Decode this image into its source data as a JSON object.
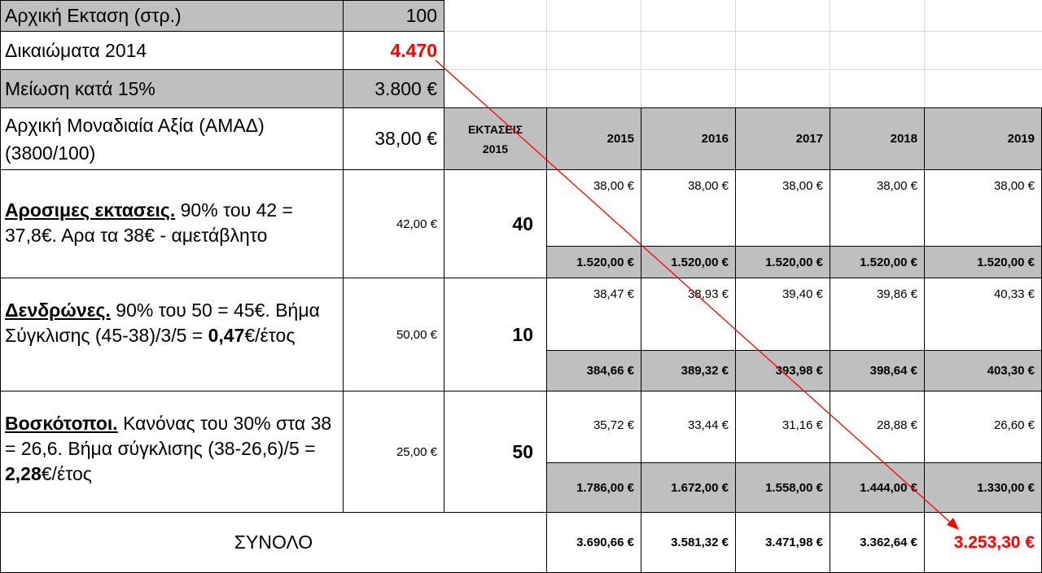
{
  "top": {
    "initial_area_label": "Αρχική Εκταση (στρ.)",
    "initial_area_value": "100",
    "rights_label": "Δικαιώματα 2014",
    "rights_value": "4.470",
    "reduction_label": "Μείωση κατά 15%",
    "reduction_value": "3.800 €",
    "unit_value_label": "Αρχική Μοναδιαία Αξία (ΑΜΑΔ) (3800/100)",
    "unit_value_value": "38,00 €"
  },
  "header": {
    "areas_label_line1": "ΕΚΤΑΣΕΙΣ",
    "areas_label_line2": "2015",
    "years": [
      "2015",
      "2016",
      "2017",
      "2018",
      "2019"
    ]
  },
  "rows": [
    {
      "title": "Αροσιμες εκτασεις.",
      "desc_rest": "   90% του 42 = 37,8€. Αρα τα 38€  - αμετάβλητο",
      "desc_bold": "",
      "desc_tail": "",
      "target_value": "42,00 €",
      "area": "40",
      "unit_values": [
        "38,00 €",
        "38,00 €",
        "38,00 €",
        "38,00 €",
        "38,00 €"
      ],
      "totals": [
        "1.520,00 €",
        "1.520,00 €",
        "1.520,00 €",
        "1.520,00 €",
        "1.520,00 €"
      ]
    },
    {
      "title": "Δενδρώνες.",
      "desc_rest": "   90% του 50 = 45€. Βήμα Σύγκλισης (45-38)/3/5 = ",
      "desc_bold": "0,47",
      "desc_tail": "€/έτος",
      "target_value": "50,00 €",
      "area": "10",
      "unit_values": [
        "38,47 €",
        "38,93 €",
        "39,40 €",
        "39,86 €",
        "40,33 €"
      ],
      "totals": [
        "384,66 €",
        "389,32 €",
        "393,98 €",
        "398,64 €",
        "403,30 €"
      ]
    },
    {
      "title": "Βοσκότοποι.",
      "desc_rest": "  Κανόνας του 30% στα 38 = 26,6.   Βήμα σύγκλισης (38-26,6)/5 = ",
      "desc_bold": "2,28",
      "desc_tail": "€/έτος",
      "target_value": "25,00 €",
      "area": "50",
      "unit_values": [
        "35,72 €",
        "33,44 €",
        "31,16 €",
        "28,88 €",
        "26,60 €"
      ],
      "totals": [
        "1.786,00 €",
        "1.672,00 €",
        "1.558,00 €",
        "1.444,00 €",
        "1.330,00 €"
      ]
    }
  ],
  "total": {
    "label": "ΣΥΝΟΛΟ",
    "values": [
      "3.690,66 €",
      "3.581,32 €",
      "3.471,98 €",
      "3.362,64 €",
      "3.253,30 €"
    ]
  },
  "colors": {
    "highlight": "#ff0000",
    "gray_fill": "#bfbfbf",
    "grid": "#d9d9d9"
  }
}
